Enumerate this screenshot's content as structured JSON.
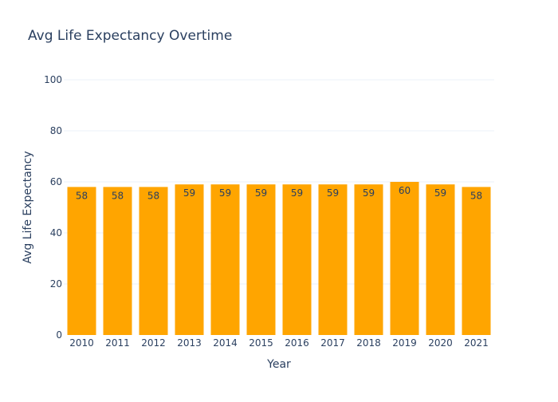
{
  "chart_data": {
    "type": "bar",
    "title": "Avg Life Expectancy Overtime",
    "xlabel": "Year",
    "ylabel": "Avg Life Expectancy",
    "categories": [
      "2010",
      "2011",
      "2012",
      "2013",
      "2014",
      "2015",
      "2016",
      "2017",
      "2018",
      "2019",
      "2020",
      "2021"
    ],
    "values": [
      58,
      58,
      58,
      59,
      59,
      59,
      59,
      59,
      59,
      60,
      59,
      58
    ],
    "data_labels": [
      "58",
      "58",
      "58",
      "59",
      "59",
      "59",
      "59",
      "59",
      "59",
      "60",
      "59",
      "58"
    ],
    "ylim": [
      0,
      100
    ],
    "yticks": [
      0,
      20,
      40,
      60,
      80,
      100
    ],
    "grid": true,
    "legend": "none",
    "bar_color": "#FFA500",
    "text_color": "#2a3f5f",
    "grid_color": "#EBF0F8"
  }
}
